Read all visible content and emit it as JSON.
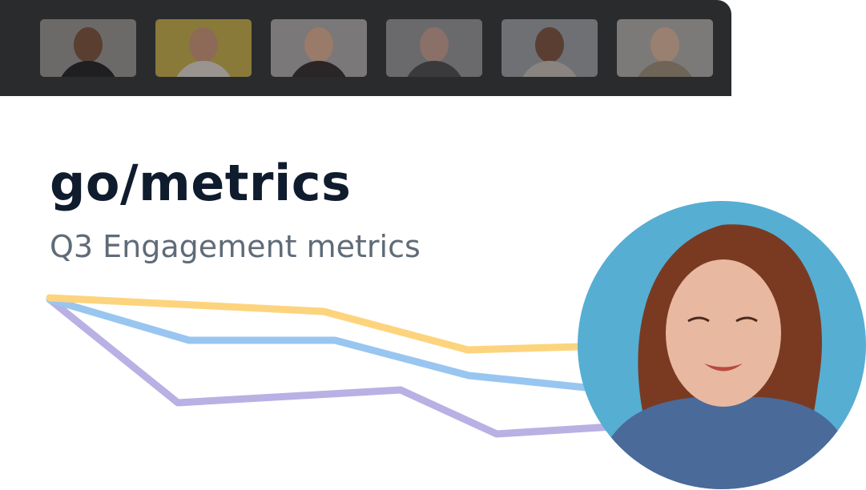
{
  "participants_bar": {
    "background": "#2a2b2d",
    "participants": [
      {
        "tile": "participant-1",
        "bg": "#6b6a68",
        "skin": "#5a3e30",
        "shirt": "#1f1f22"
      },
      {
        "tile": "participant-2",
        "bg": "#8a7a3a",
        "skin": "#8d6a58",
        "shirt": "#9a9490"
      },
      {
        "tile": "participant-3",
        "bg": "#7a7878",
        "skin": "#9a7a68",
        "shirt": "#2a2526"
      },
      {
        "tile": "participant-4",
        "bg": "#6a6a6c",
        "skin": "#8a7068",
        "shirt": "#3a3a3c"
      },
      {
        "tile": "participant-5",
        "bg": "#6e7074",
        "skin": "#5a3e32",
        "shirt": "#8a8480"
      },
      {
        "tile": "participant-6",
        "bg": "#7c7a78",
        "skin": "#9a8070",
        "shirt": "#6e6458"
      }
    ]
  },
  "presentation": {
    "title": "go/metrics",
    "subtitle": "Q3 Engagement metrics"
  },
  "metric_lines": {
    "colors": [
      "#fdd47e",
      "#99c6f0",
      "#b9b0e4"
    ]
  },
  "presenter": {
    "background": "#56aed3",
    "hair": "#7a3a22",
    "skin": "#e8b8a0",
    "shirt": "#4a6a9a"
  }
}
